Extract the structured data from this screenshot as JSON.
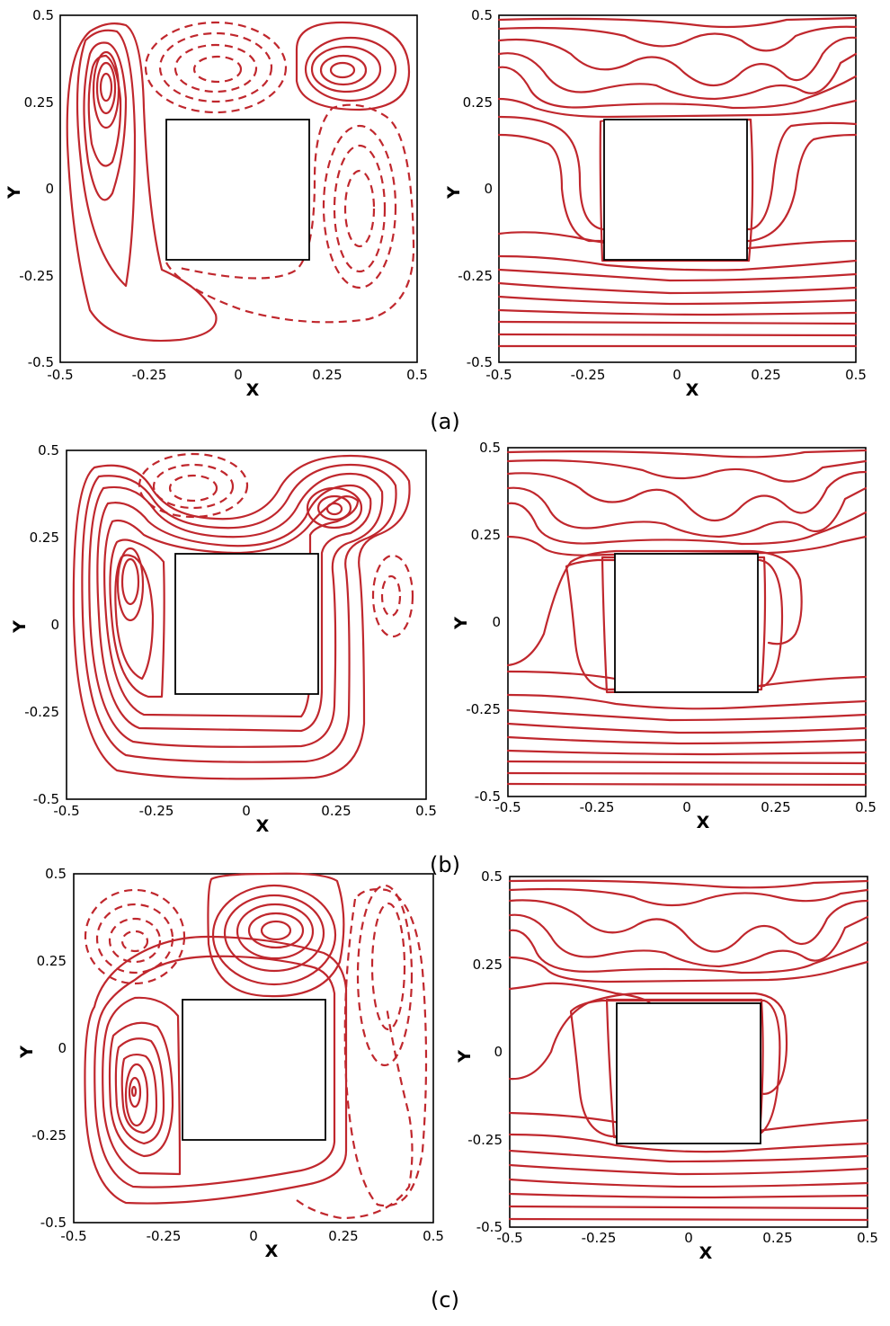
{
  "panels": [
    {
      "label": "(a)"
    },
    {
      "label": "(b)"
    },
    {
      "label": "(c)"
    }
  ],
  "axes": {
    "x_title": "X",
    "y_title": "Y",
    "x_ticks": [
      "-0.5",
      "-0.25",
      "0",
      "0.25",
      "0.5"
    ],
    "y_ticks": [
      "-0.5",
      "-0.25",
      "0",
      "0.25",
      "0.5"
    ]
  },
  "colors": {
    "contour": "#c0272d",
    "frame": "#000000"
  }
}
